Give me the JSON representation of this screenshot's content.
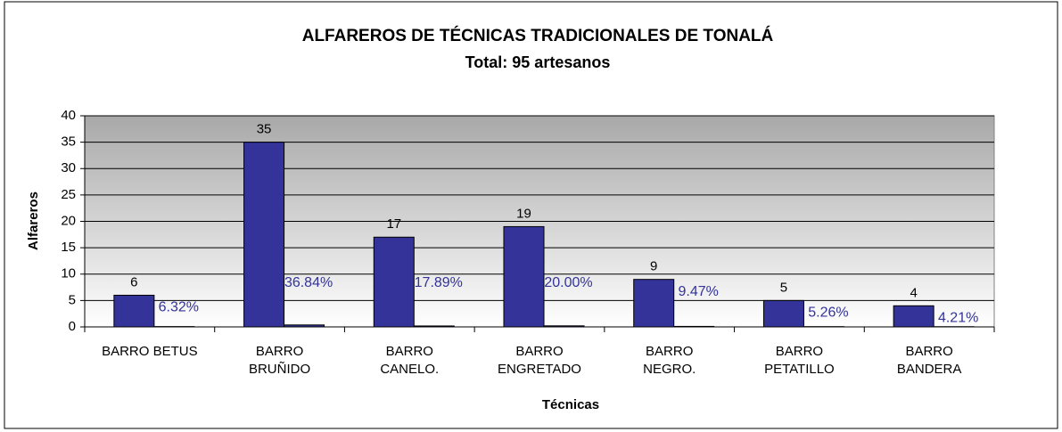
{
  "chart_data": {
    "type": "bar",
    "title": "ALFAREROS DE TÉCNICAS TRADICIONALES DE TONALÁ",
    "subtitle": "Total: 95 artesanos",
    "x_label": "Técnicas",
    "y_label": "Alfareros",
    "categories": [
      "BARRO BETUS",
      "BARRO\nBRUÑIDO",
      "BARRO\nCANELO.",
      "BARRO\nENGRETADO",
      "BARRO\nNEGRO.",
      "BARRO\nPETATILLO",
      "BARRO\nBANDERA"
    ],
    "series": [
      {
        "color": "#333399",
        "values": [
          6,
          35,
          17,
          19,
          9,
          5,
          4
        ]
      },
      {
        "color": "#333399",
        "values": [
          0.0632,
          0.3684,
          0.1789,
          0.2,
          0.0947,
          0.0526,
          0.0421
        ],
        "value_labels": [
          "6.32%",
          "36.84%",
          "17.89%",
          "20.00%",
          "9.47%",
          "5.26%",
          "4.21%"
        ]
      }
    ],
    "ylim": [
      0,
      40
    ],
    "yticks": [
      0,
      5,
      10,
      15,
      20,
      25,
      30,
      35,
      40
    ],
    "grid": true
  }
}
